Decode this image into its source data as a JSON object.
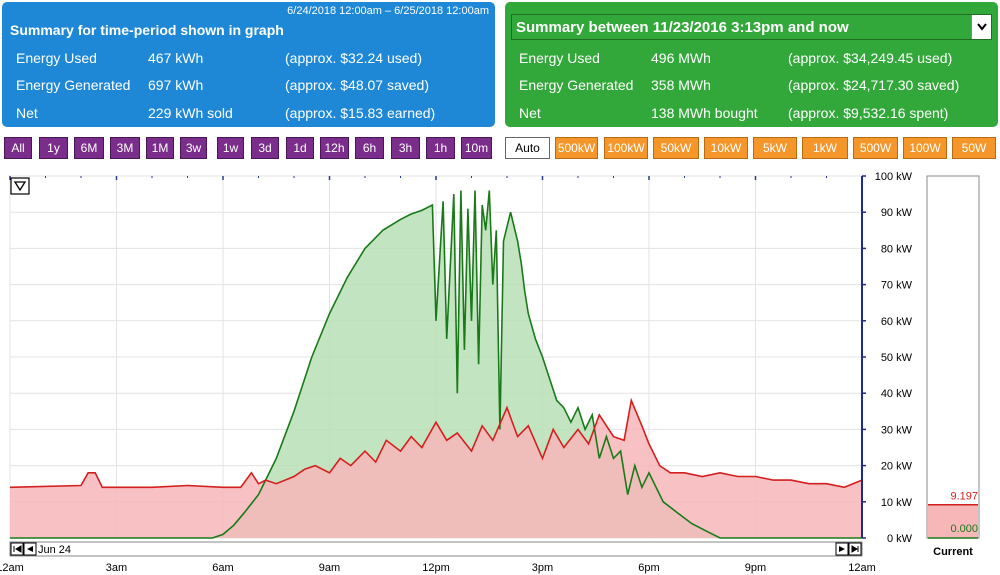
{
  "period_summary": {
    "range": "6/24/2018 12:00am – 6/25/2018 12:00am",
    "title": "Summary for time-period shown in graph",
    "rows": [
      {
        "label": "Energy Used",
        "value": "467 kWh",
        "note": "(approx. $32.24 used)"
      },
      {
        "label": "Energy Generated",
        "value": "697 kWh",
        "note": "(approx. $48.07 saved)"
      },
      {
        "label": "Net",
        "value": "229 kWh sold",
        "note": "(approx. $15.83 earned)"
      }
    ]
  },
  "total_summary": {
    "title": "Summary between 11/23/2016 3:13pm and now",
    "dropdown_icon": "chevron-down-icon",
    "rows": [
      {
        "label": "Energy Used",
        "value": "496 MWh",
        "note": "(approx. $34,249.45 used)"
      },
      {
        "label": "Energy Generated",
        "value": "358 MWh",
        "note": "(approx. $24,717.30 saved)"
      },
      {
        "label": "Net",
        "value": "138 MWh bought",
        "note": "(approx. $9,532.16 spent)"
      }
    ]
  },
  "time_buttons": [
    "All",
    "1y",
    "6M",
    "3M",
    "1M",
    "3w",
    "1w",
    "3d",
    "1d",
    "12h",
    "6h",
    "3h",
    "1h",
    "10m"
  ],
  "scale_buttons": [
    "Auto",
    "500kW",
    "100kW",
    "50kW",
    "10kW",
    "5kW",
    "1kW",
    "500W",
    "100W",
    "50W"
  ],
  "colors": {
    "period_panel": "#1e88d6",
    "total_panel": "#33a83a",
    "time_button": "#7b2d8b",
    "scale_button": "#f5962a",
    "generation_line": "#1a7a1a",
    "generation_fill": "#b9dfb5",
    "usage_line": "#d41f1f",
    "usage_fill": "#f7b6b8"
  },
  "chart_data": {
    "type": "area",
    "date_label": "Jun 24",
    "x_tick_labels": [
      "12am",
      "3am",
      "6am",
      "9am",
      "12pm",
      "3pm",
      "6pm",
      "9pm",
      "12am"
    ],
    "y_tick_labels": [
      "0 kW",
      "10 kW",
      "20 kW",
      "30 kW",
      "40 kW",
      "50 kW",
      "60 kW",
      "70 kW",
      "80 kW",
      "90 kW",
      "100 kW"
    ],
    "ylim": [
      0,
      100
    ],
    "xlim_hours": [
      0,
      24
    ],
    "current_label": "Current",
    "current_values": {
      "usage": "9.197",
      "generation": "0.000"
    },
    "current_numeric": {
      "usage": 9.197,
      "generation": 0.0
    },
    "series": [
      {
        "key": "generation",
        "hours": [
          0,
          5.7,
          6,
          6.3,
          6.6,
          7,
          7.5,
          8,
          8.5,
          9,
          9.5,
          10,
          10.5,
          11,
          11.3,
          11.6,
          11.9,
          12,
          12.2,
          12.3,
          12.5,
          12.6,
          12.7,
          12.8,
          12.9,
          13,
          13.1,
          13.2,
          13.3,
          13.4,
          13.5,
          13.6,
          13.7,
          13.8,
          13.9,
          14,
          14.1,
          14.2,
          14.3,
          14.4,
          14.5,
          14.6,
          14.8,
          15,
          15.2,
          15.4,
          15.6,
          15.8,
          16,
          16.2,
          16.4,
          16.6,
          16.8,
          17,
          17.2,
          17.4,
          17.6,
          17.8,
          18,
          18.4,
          18.8,
          19.2,
          19.6,
          20,
          24
        ],
        "values": [
          0,
          0,
          1,
          3.5,
          7,
          12,
          22,
          35,
          50,
          62,
          72,
          80,
          85,
          88,
          89.5,
          90.5,
          92,
          60,
          93,
          55,
          95,
          40,
          96,
          52,
          91,
          60,
          96,
          48,
          92,
          85,
          96,
          70,
          85,
          30,
          82,
          86,
          90,
          86,
          82,
          76,
          68,
          62,
          55,
          50,
          44,
          38,
          36,
          32,
          36,
          30,
          34,
          22,
          28,
          22,
          24,
          12,
          20,
          14,
          18,
          10,
          7,
          4,
          2,
          0,
          0
        ]
      },
      {
        "key": "usage",
        "hours": [
          0,
          2,
          2.2,
          2.4,
          2.6,
          3,
          4,
          5,
          6,
          6.5,
          6.8,
          7,
          7.2,
          7.5,
          8,
          8.3,
          8.6,
          9,
          9.3,
          9.6,
          10,
          10.3,
          10.6,
          11,
          11.3,
          11.6,
          12,
          12.3,
          12.6,
          13,
          13.3,
          13.6,
          14,
          14.3,
          14.6,
          15,
          15.3,
          15.6,
          16,
          16.3,
          16.6,
          17,
          17.3,
          17.5,
          17.8,
          18,
          18.3,
          18.6,
          19,
          19.5,
          20,
          20.5,
          21,
          21.5,
          22,
          22.5,
          23,
          23.5,
          24
        ],
        "values": [
          14,
          14.5,
          18,
          18,
          14,
          14,
          14,
          14.5,
          14,
          14,
          18,
          15,
          16,
          15,
          17,
          19,
          20,
          18,
          22,
          20,
          24,
          21,
          27,
          24,
          28,
          25,
          32,
          27,
          29,
          24,
          31,
          27,
          36,
          28,
          31,
          22,
          30,
          25,
          30,
          26,
          34,
          28,
          27,
          38,
          31,
          26,
          20,
          18,
          18,
          17,
          18,
          17,
          17,
          16,
          16,
          15,
          15,
          14,
          16
        ]
      }
    ]
  }
}
